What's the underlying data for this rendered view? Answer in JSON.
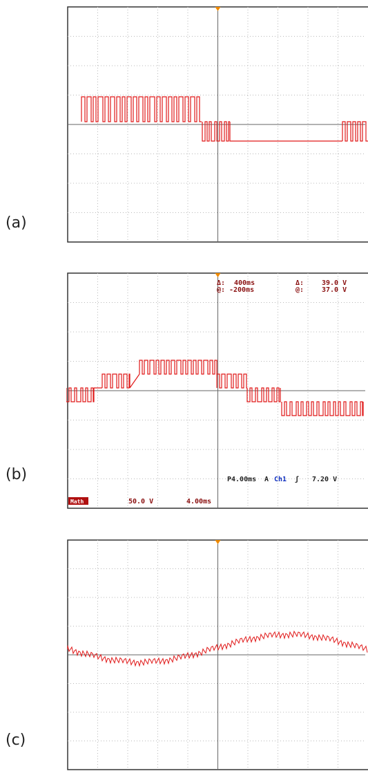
{
  "panels": [
    {
      "label": "(a)"
    },
    {
      "label": "(b)",
      "readouts": {
        "delta_time_sym": "Δ:",
        "delta_time": "400ms",
        "delta_v_sym": "Δ:",
        "delta_v": "39.0 V",
        "at_time_sym": "@:",
        "at_time": "-200ms",
        "at_v_sym": "@:",
        "at_v": "37.0 V",
        "horiz": "P4.00ms",
        "trig_src": "A",
        "channel": "Ch1",
        "trig_slope": "ʃ",
        "trig_level": "7.20 V",
        "math_label": "Math",
        "math_scale": "50.0 V",
        "math_time": "4.00ms"
      }
    },
    {
      "label": "(c)"
    }
  ],
  "colors": {
    "trace": "#e01818",
    "grid": "#b8b8b8",
    "frame": "#333333",
    "trigger_marker": "#f08a00"
  },
  "chart_data": [
    {
      "type": "line",
      "title": "",
      "xlabel": "",
      "ylabel": "",
      "grid": true,
      "divisions": [
        10,
        8
      ],
      "x": [
        0,
        4.6,
        4.6,
        9.6,
        9.6,
        10
      ],
      "series": [
        {
          "values": [
            1,
            1,
            -1,
            -1,
            1,
            1
          ]
        }
      ]
    },
    {
      "type": "line",
      "title": "",
      "xlabel": "",
      "ylabel": "",
      "grid": true,
      "divisions": [
        10,
        8
      ],
      "series": [
        {
          "levels": [
            -1,
            1,
            2,
            1,
            -1,
            -2
          ]
        }
      ]
    },
    {
      "type": "line",
      "title": "",
      "xlabel": "",
      "ylabel": "",
      "grid": true,
      "divisions": [
        10,
        8
      ],
      "series": [
        {
          "shape": "sine",
          "cycles": 1
        }
      ]
    }
  ]
}
